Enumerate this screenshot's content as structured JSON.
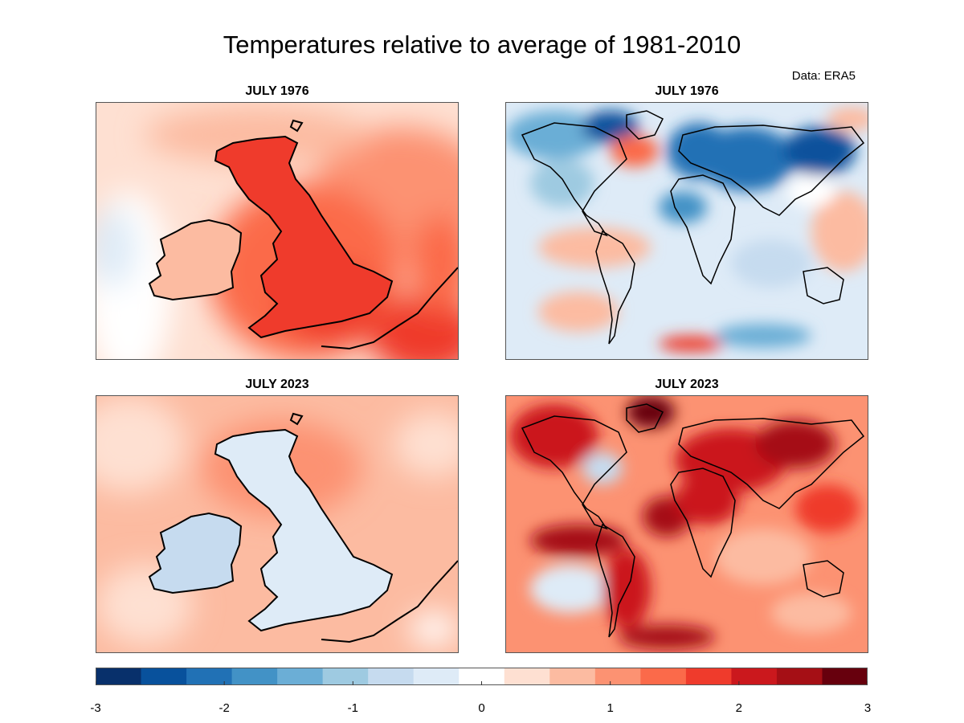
{
  "figure": {
    "title": "Temperatures relative to average of 1981-2010",
    "source": "Data: ERA5"
  },
  "panels": [
    {
      "id": "uk-1976",
      "label": "JULY 1976",
      "region": "uk",
      "year": 1976
    },
    {
      "id": "world-1976",
      "label": "JULY 1976",
      "region": "world",
      "year": 1976
    },
    {
      "id": "uk-2023",
      "label": "JULY 2023",
      "region": "uk",
      "year": 2023
    },
    {
      "id": "world-2023",
      "label": "JULY 2023",
      "region": "world",
      "year": 2023
    }
  ],
  "colorbar": {
    "min": -3,
    "max": 3,
    "step": 0.35294,
    "ticks": [
      "-3",
      "-2",
      "-1",
      "0",
      "1",
      "2",
      "3"
    ],
    "colors": [
      "#08306b",
      "#08519c",
      "#2171b5",
      "#4292c6",
      "#6baed6",
      "#9ecae1",
      "#c6dbef",
      "#deebf7",
      "#ffffff",
      "#fee0d2",
      "#fcbba1",
      "#fc9272",
      "#fb6a4a",
      "#ef3b2c",
      "#cb181d",
      "#a50f15",
      "#67000d"
    ]
  }
}
